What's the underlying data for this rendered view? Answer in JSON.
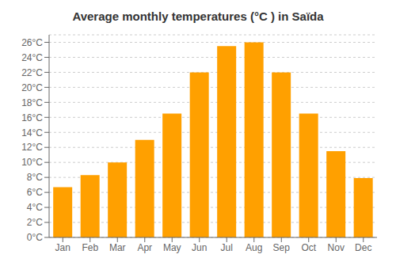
{
  "chart_data": {
    "type": "bar",
    "title": "Average monthly temperatures (°C ) in Saïda",
    "categories": [
      "Jan",
      "Feb",
      "Mar",
      "Apr",
      "May",
      "Jun",
      "Jul",
      "Aug",
      "Sep",
      "Oct",
      "Nov",
      "Dec"
    ],
    "values": [
      6.7,
      8.3,
      10.0,
      13.0,
      16.5,
      22.0,
      25.5,
      26.0,
      22.0,
      16.5,
      11.5,
      7.9
    ],
    "color": "#FFA000",
    "ylim": [
      0,
      27
    ],
    "yticks": [
      {
        "value": 0,
        "label": "0°C"
      },
      {
        "value": 2,
        "label": "2°C"
      },
      {
        "value": 4,
        "label": "4°C"
      },
      {
        "value": 6,
        "label": "6°C"
      },
      {
        "value": 8,
        "label": "8°C"
      },
      {
        "value": 10,
        "label": "10°C"
      },
      {
        "value": 12,
        "label": "12°C"
      },
      {
        "value": 14,
        "label": "14°C"
      },
      {
        "value": 16,
        "label": "16°C"
      },
      {
        "value": 18,
        "label": "18°C"
      },
      {
        "value": 20,
        "label": "20°C"
      },
      {
        "value": 22,
        "label": "22°C"
      },
      {
        "value": 24,
        "label": "24°C"
      },
      {
        "value": 26,
        "label": "26°C"
      }
    ],
    "grid": true
  }
}
